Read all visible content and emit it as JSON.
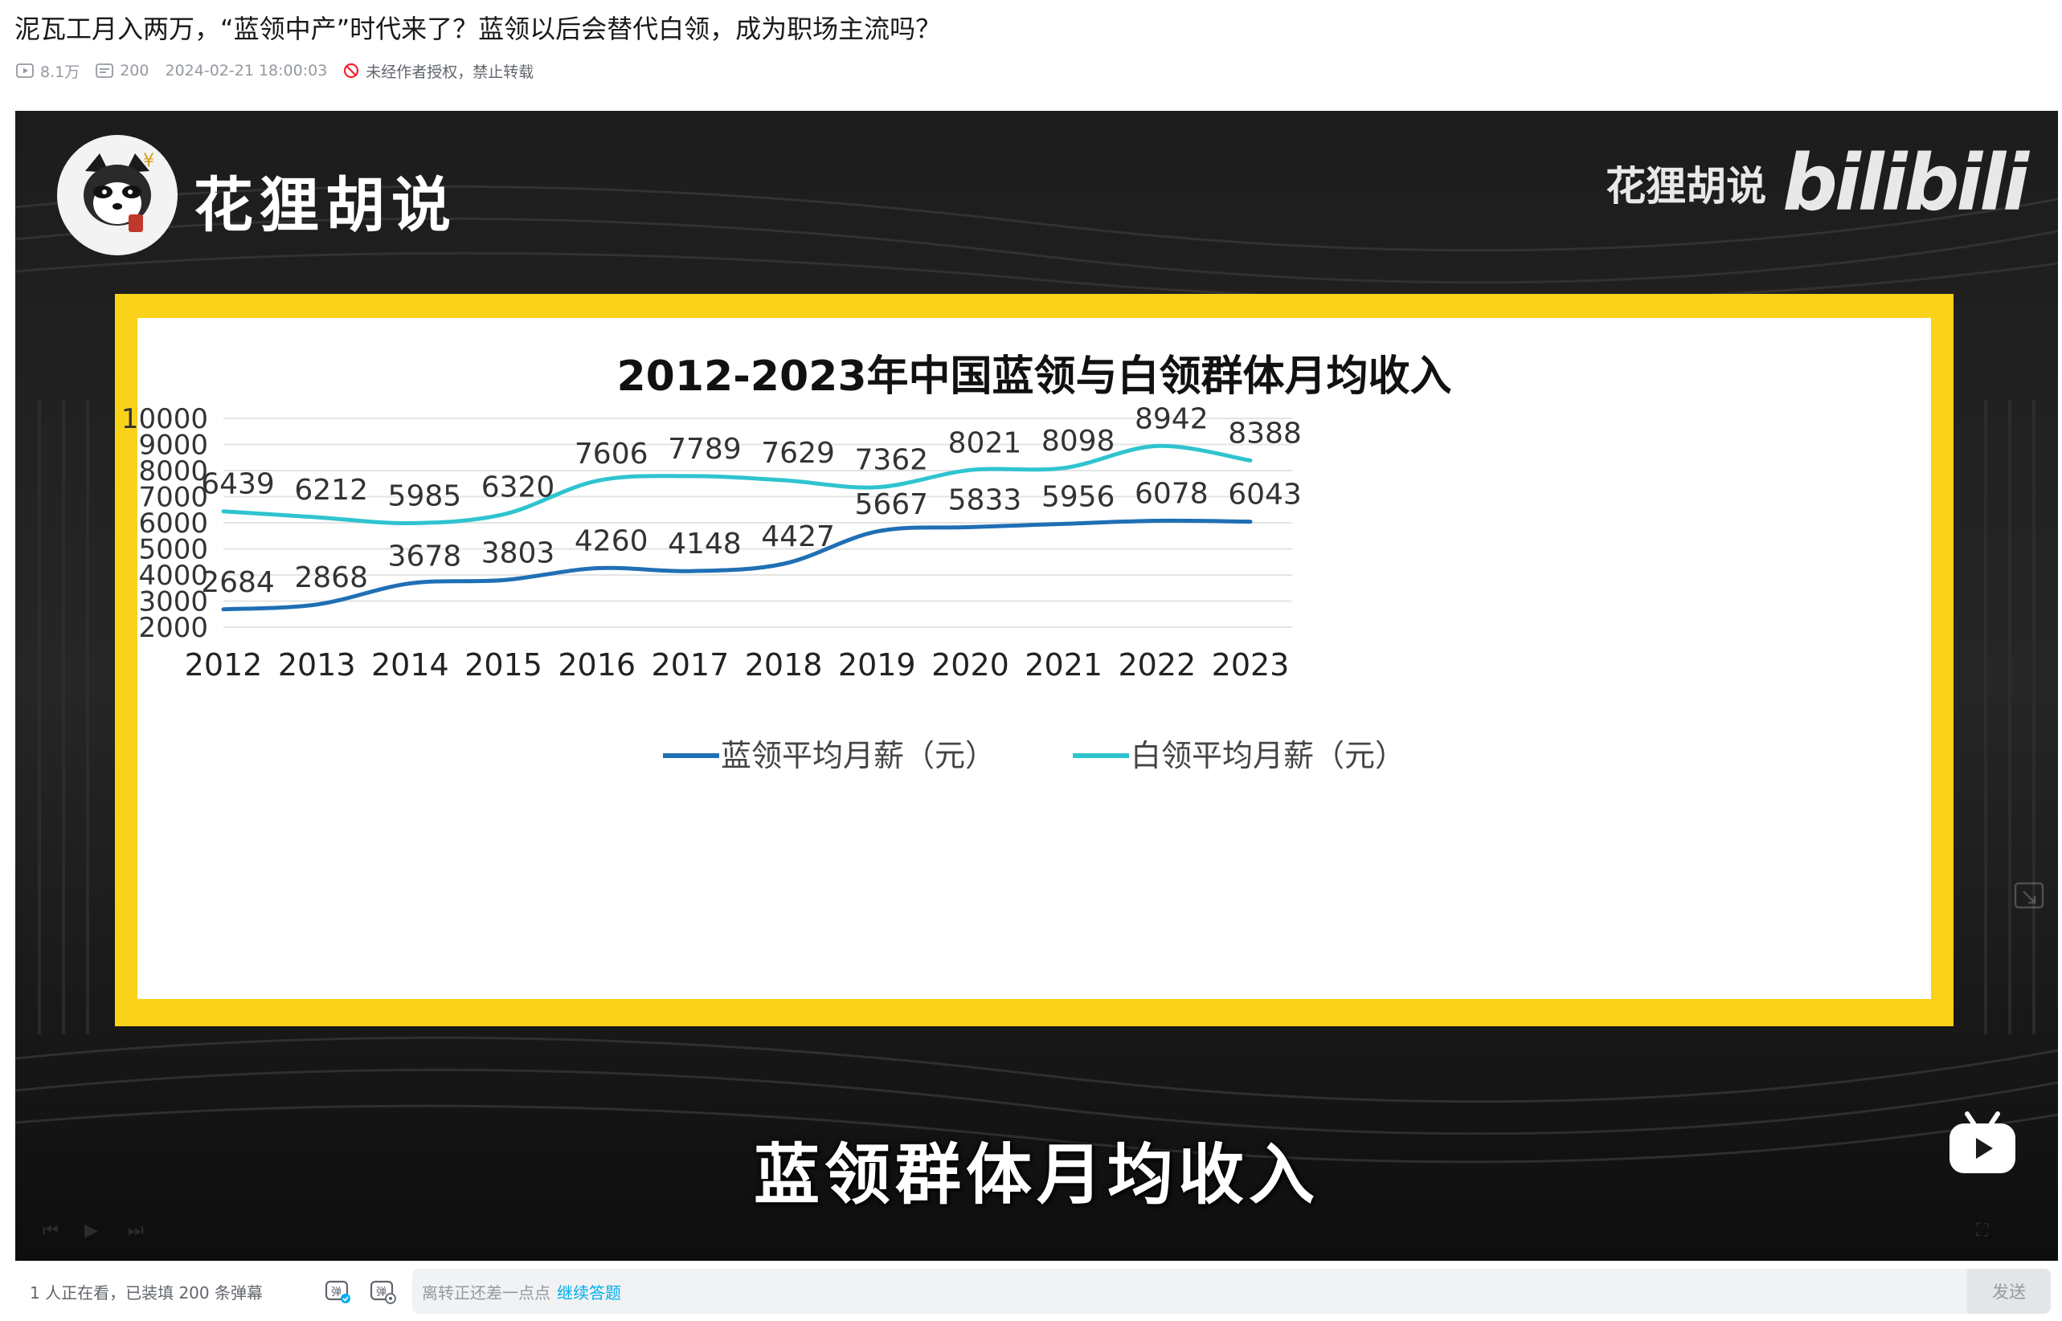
{
  "video": {
    "title": "泥瓦工月入两万，“蓝领中产”时代来了？蓝领以后会替代白领，成为职场主流吗？",
    "views": "8.1万",
    "danmaku_count": "200",
    "publish_time": "2024-02-21 18:00:03",
    "copyright_notice": "未经作者授权，禁止转载"
  },
  "player": {
    "channel_name": "花狸胡说",
    "watermark_text": "花狸胡说",
    "watermark_brand": "bilibili",
    "subtitle": "蓝领群体月均收入",
    "frame_color": "#fbd21a"
  },
  "chart_data": {
    "type": "line",
    "title": "2012-2023年中国蓝领与白领群体月均收入",
    "categories": [
      "2012",
      "2013",
      "2014",
      "2015",
      "2016",
      "2017",
      "2018",
      "2019",
      "2020",
      "2021",
      "2022",
      "2023"
    ],
    "series": [
      {
        "name": "蓝领平均月薪（元）",
        "color": "#1f6fb5",
        "values": [
          2684,
          2868,
          3678,
          3803,
          4260,
          4148,
          4427,
          5667,
          5833,
          5956,
          6078,
          6043
        ]
      },
      {
        "name": "白领平均月薪（元）",
        "color": "#2ec4cf",
        "values": [
          6439,
          6212,
          5985,
          6320,
          7606,
          7789,
          7629,
          7362,
          8021,
          8098,
          8942,
          8388
        ]
      }
    ],
    "yticks": [
      2000,
      3000,
      4000,
      5000,
      6000,
      7000,
      8000,
      9000,
      10000
    ],
    "ylim": [
      2000,
      10000
    ],
    "grid": true,
    "legend": "bottom"
  },
  "bottom_bar": {
    "viewers_text": "1 人正在看，已装填 200 条弹幕",
    "input_hint": "离转正还差一点点",
    "input_link": "继续答题",
    "send_label": "发送"
  }
}
